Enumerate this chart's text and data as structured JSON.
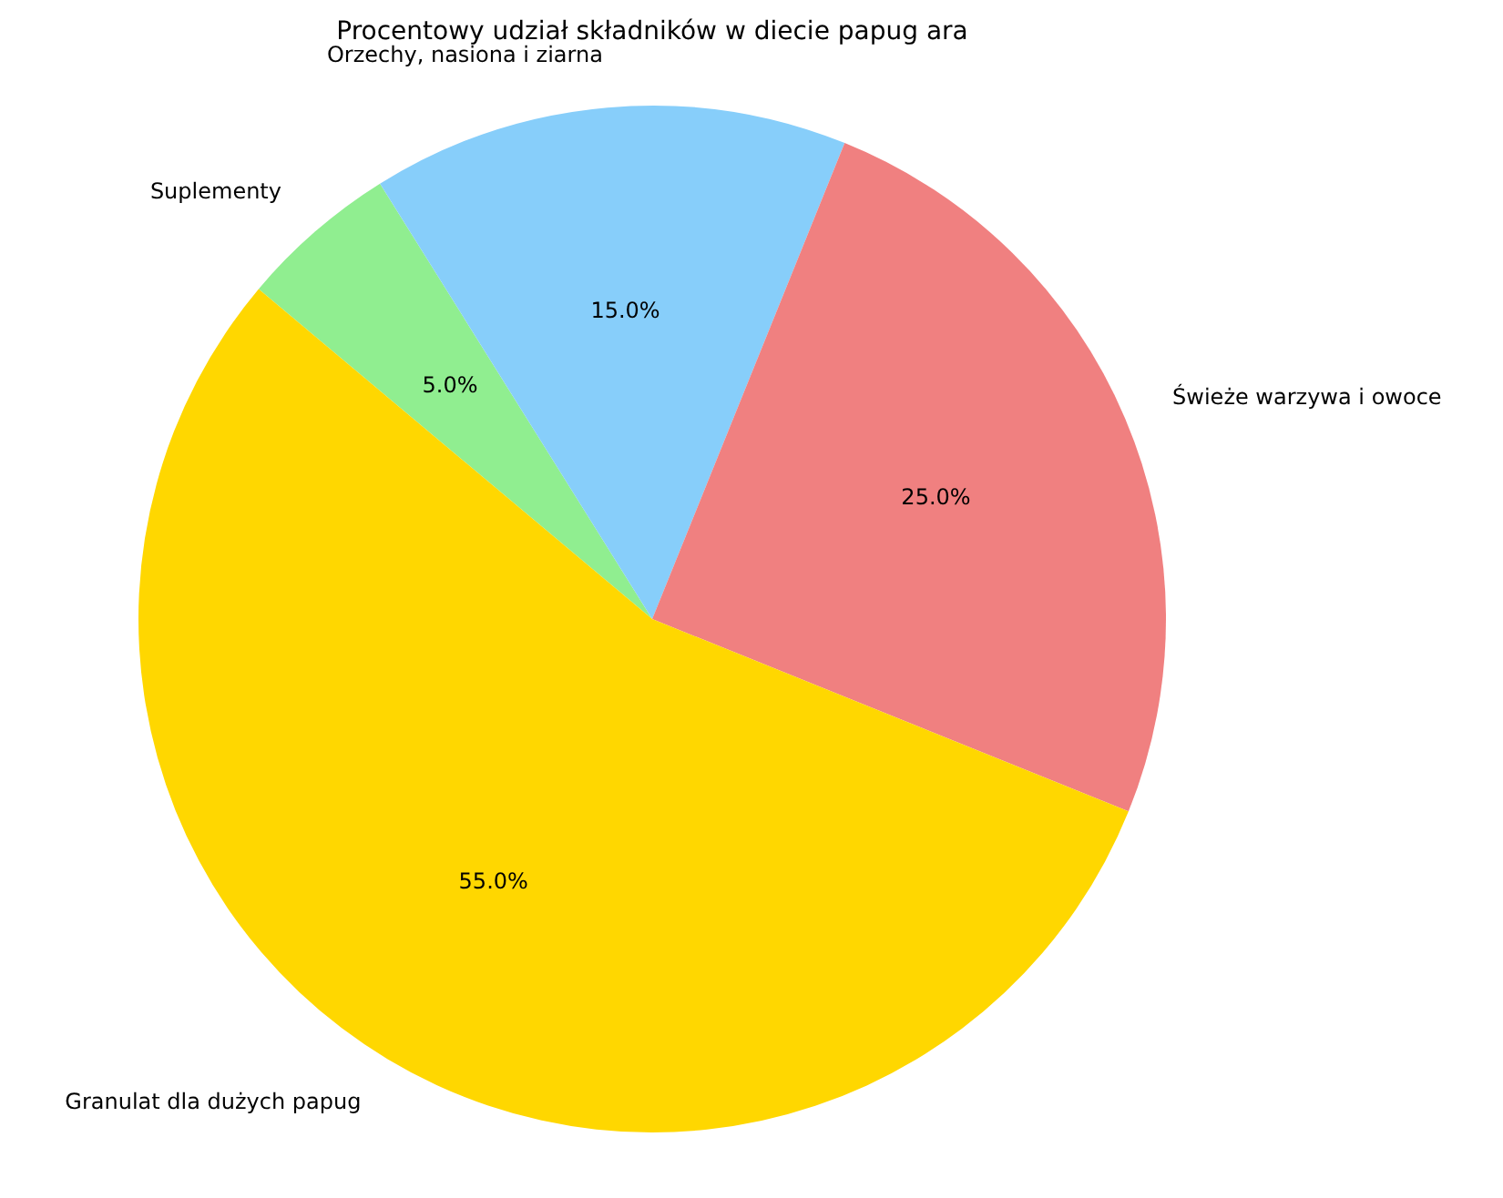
{
  "chart_data": {
    "type": "pie",
    "title": "Procentowy udział składników w diecie papug ara",
    "categories": [
      "Suplementy",
      "Orzechy, nasiona i ziarna",
      "Świeże warzywa i owoce",
      "Granulat dla dużych papug"
    ],
    "values": [
      5,
      15,
      25,
      55
    ],
    "colors": [
      "#90ee90",
      "#87cefa",
      "#f08080",
      "#ffd700"
    ],
    "value_labels": [
      "5.0%",
      "15.0%",
      "25.0%",
      "55.0%"
    ]
  }
}
